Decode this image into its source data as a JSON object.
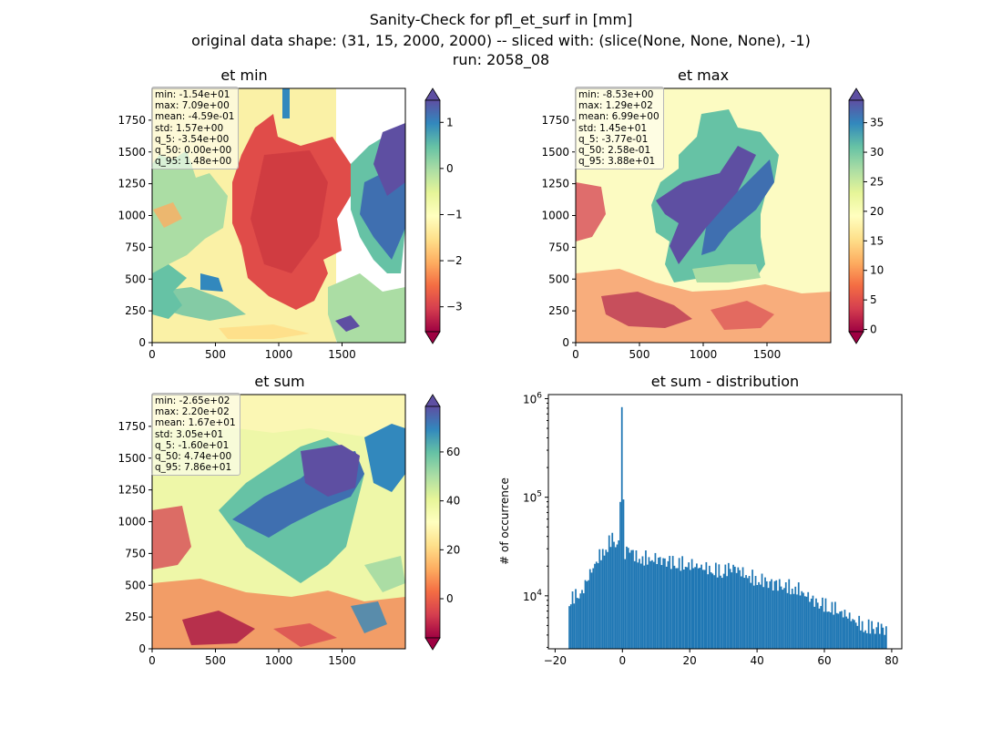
{
  "figure": {
    "title_line1": "Sanity-Check for pfl_et_surf in [mm]",
    "title_line2": "original data shape: (31, 15, 2000, 2000) -- sliced with: (slice(None, None, None), -1)",
    "title_line3": "run: 2058_08"
  },
  "colormap": "Spectral",
  "chart_data": [
    {
      "type": "heatmap",
      "title": "et min",
      "xlim": [
        0,
        2000
      ],
      "ylim": [
        0,
        2000
      ],
      "xticks": [
        0,
        500,
        1000,
        1500
      ],
      "yticks": [
        0,
        250,
        500,
        750,
        1000,
        1250,
        1500,
        1750
      ],
      "colorbar": {
        "vmin": -3.54,
        "vmax": 1.48,
        "ticks": [
          -3,
          -2,
          -1,
          0,
          1
        ],
        "extend": "both"
      },
      "stats": [
        "min: -1.54e+01",
        "max: 7.09e+00",
        "mean: -4.59e-01",
        "std: 1.57e+00",
        "q_5: -3.54e+00",
        "q_50: 0.00e+00",
        "q_95: 1.48e+00"
      ]
    },
    {
      "type": "heatmap",
      "title": "et max",
      "xlim": [
        0,
        2000
      ],
      "ylim": [
        0,
        2000
      ],
      "xticks": [
        0,
        500,
        1000,
        1500
      ],
      "yticks": [
        0,
        250,
        500,
        750,
        1000,
        1250,
        1500,
        1750
      ],
      "colorbar": {
        "vmin": -0.377,
        "vmax": 38.8,
        "ticks": [
          0,
          5,
          10,
          15,
          20,
          25,
          30,
          35
        ],
        "extend": "both"
      },
      "stats": [
        "min: -8.53e+00",
        "max: 1.29e+02",
        "mean: 6.99e+00",
        "std: 1.45e+01",
        "q_5: -3.77e-01",
        "q_50: 2.58e-01",
        "q_95: 3.88e+01"
      ]
    },
    {
      "type": "heatmap",
      "title": "et sum",
      "xlim": [
        0,
        2000
      ],
      "ylim": [
        0,
        2000
      ],
      "xticks": [
        0,
        500,
        1000,
        1500
      ],
      "yticks": [
        0,
        250,
        500,
        750,
        1000,
        1250,
        1500,
        1750
      ],
      "colorbar": {
        "vmin": -16.0,
        "vmax": 78.6,
        "ticks": [
          0,
          20,
          40,
          60
        ],
        "extend": "both"
      },
      "stats": [
        "min: -2.65e+02",
        "max: 2.20e+02",
        "mean: 1.67e+01",
        "std: 3.05e+01",
        "q_5: -1.60e+01",
        "q_50: 4.74e+00",
        "q_95: 7.86e+01"
      ]
    },
    {
      "type": "bar",
      "title": "et sum - distribution",
      "ylabel": "# of occurrence",
      "yscale": "log",
      "xlim": [
        -22,
        83
      ],
      "ylim": [
        2900,
        1100000
      ],
      "xticks": [
        -20,
        0,
        20,
        40,
        60,
        80
      ],
      "yticks": [
        10000,
        100000,
        1000000
      ],
      "ytick_labels": [
        [
          "10",
          "4"
        ],
        [
          "10",
          "5"
        ],
        [
          "10",
          "6"
        ]
      ],
      "color": "#1f77b4",
      "bin_start": -16.0,
      "bin_end": 78.6,
      "envelope": [
        [
          -16,
          9500
        ],
        [
          -12,
          11000
        ],
        [
          -10,
          16000
        ],
        [
          -8,
          22000
        ],
        [
          -6,
          28000
        ],
        [
          -4,
          35000
        ],
        [
          -3,
          40000
        ],
        [
          -1,
          33000
        ],
        [
          0,
          820000
        ],
        [
          0.5,
          27000
        ],
        [
          2,
          32000
        ],
        [
          4,
          25000
        ],
        [
          10,
          24000
        ],
        [
          14,
          23000
        ],
        [
          20,
          21000
        ],
        [
          26,
          19000
        ],
        [
          30,
          18500
        ],
        [
          33,
          20000
        ],
        [
          36,
          17000
        ],
        [
          40,
          15000
        ],
        [
          46,
          13500
        ],
        [
          52,
          12000
        ],
        [
          57,
          9000
        ],
        [
          62,
          8000
        ],
        [
          68,
          6000
        ],
        [
          72,
          5000
        ],
        [
          76,
          5000
        ],
        [
          78.6,
          4500
        ]
      ]
    }
  ]
}
